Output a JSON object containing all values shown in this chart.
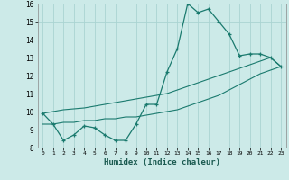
{
  "xlabel": "Humidex (Indice chaleur)",
  "background_color": "#cceae8",
  "grid_color": "#aad4d2",
  "line_color": "#1a7a6e",
  "x_values": [
    0,
    1,
    2,
    3,
    4,
    5,
    6,
    7,
    8,
    9,
    10,
    11,
    12,
    13,
    14,
    15,
    16,
    17,
    18,
    19,
    20,
    21,
    22,
    23
  ],
  "curve1_y": [
    9.9,
    9.3,
    8.4,
    8.7,
    9.2,
    9.1,
    8.7,
    8.4,
    8.4,
    9.3,
    10.4,
    10.4,
    12.2,
    13.5,
    16.0,
    15.5,
    15.7,
    15.0,
    14.3,
    13.1,
    13.2,
    13.2,
    13.0,
    12.5
  ],
  "line1_y": [
    9.9,
    10.0,
    10.1,
    10.15,
    10.2,
    10.3,
    10.4,
    10.5,
    10.6,
    10.7,
    10.8,
    10.9,
    11.0,
    11.2,
    11.4,
    11.6,
    11.8,
    12.0,
    12.2,
    12.4,
    12.6,
    12.8,
    13.0,
    12.5
  ],
  "line2_y": [
    9.3,
    9.3,
    9.4,
    9.4,
    9.5,
    9.5,
    9.6,
    9.6,
    9.7,
    9.7,
    9.8,
    9.9,
    10.0,
    10.1,
    10.3,
    10.5,
    10.7,
    10.9,
    11.2,
    11.5,
    11.8,
    12.1,
    12.3,
    12.5
  ],
  "ylim": [
    8,
    16
  ],
  "xlim": [
    -0.5,
    23.5
  ],
  "yticks": [
    8,
    9,
    10,
    11,
    12,
    13,
    14,
    15,
    16
  ],
  "xticks": [
    0,
    1,
    2,
    3,
    4,
    5,
    6,
    7,
    8,
    9,
    10,
    11,
    12,
    13,
    14,
    15,
    16,
    17,
    18,
    19,
    20,
    21,
    22,
    23
  ]
}
